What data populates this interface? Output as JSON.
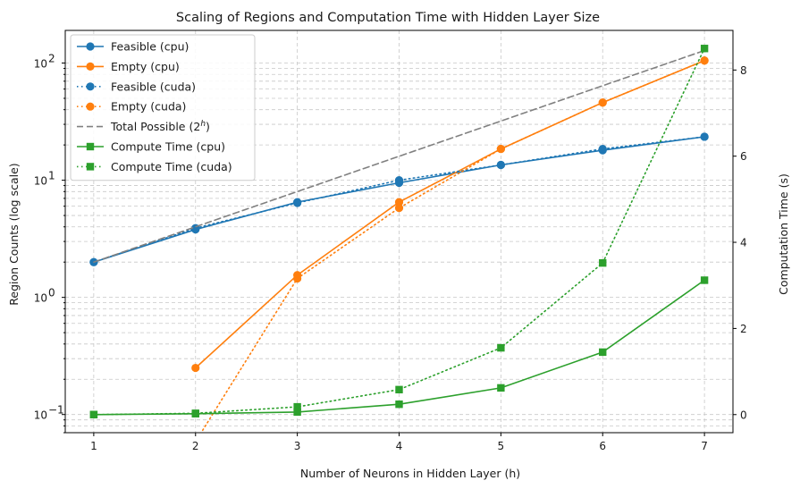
{
  "chart_data": {
    "type": "line",
    "title": "Scaling of Regions and Computation Time with Hidden Layer Size",
    "xlabel": "Number of Neurons in Hidden Layer (h)",
    "ylabel": "Region Counts (log scale)",
    "y2label": "Computation Time (s)",
    "x": [
      1,
      2,
      3,
      4,
      5,
      6,
      7
    ],
    "xlim": [
      0.72,
      7.28
    ],
    "ylim": [
      0.07,
      190
    ],
    "y2lim": [
      -0.42,
      8.92
    ],
    "yscale": "log",
    "grid": true,
    "legend_position": "upper-left",
    "x_ticks": [
      1,
      2,
      3,
      4,
      5,
      6,
      7
    ],
    "y_ticks": [
      {
        "value": 0.1,
        "base": "10",
        "exp": "−1"
      },
      {
        "value": 1,
        "base": "10",
        "exp": "0"
      },
      {
        "value": 10,
        "base": "10",
        "exp": "1"
      },
      {
        "value": 100,
        "base": "10",
        "exp": "2"
      }
    ],
    "y2_ticks": [
      0,
      2,
      4,
      6,
      8
    ],
    "series": [
      {
        "name": "Feasible (cpu)",
        "axis": "left",
        "color": "#1f77b4",
        "style": "solid",
        "marker": "circle",
        "values": [
          2,
          3.8,
          6.5,
          9.5,
          13.5,
          18,
          23.5
        ]
      },
      {
        "name": "Empty (cpu)",
        "axis": "left",
        "color": "#ff7f0e",
        "style": "solid",
        "marker": "circle",
        "values": [
          null,
          0.25,
          1.55,
          6.5,
          18.5,
          46,
          105
        ]
      },
      {
        "name": "Feasible (cuda)",
        "axis": "left",
        "color": "#1f77b4",
        "style": "dotted",
        "marker": "circle",
        "values": [
          2,
          3.9,
          6.4,
          10,
          13.5,
          18.5,
          23.5
        ]
      },
      {
        "name": "Empty (cuda)",
        "axis": "left",
        "color": "#ff7f0e",
        "style": "dotted",
        "marker": "circle",
        "values": [
          null,
          0.01,
          1.45,
          5.8,
          18.5,
          46,
          105
        ]
      },
      {
        "name": "Total Possible",
        "name_math": "(2",
        "name_sup": "h",
        "name_tail": ")",
        "axis": "left",
        "color": "#808080",
        "style": "dashed",
        "marker": "none",
        "values": [
          2,
          4,
          8,
          16,
          32,
          64,
          128
        ]
      },
      {
        "name": "Compute Time (cpu)",
        "axis": "right",
        "color": "#2ca02c",
        "style": "solid",
        "marker": "square",
        "values": [
          0.0,
          0.02,
          0.06,
          0.24,
          0.62,
          1.45,
          3.12
        ]
      },
      {
        "name": "Compute Time (cuda)",
        "axis": "right",
        "color": "#2ca02c",
        "style": "dotted",
        "marker": "square",
        "values": [
          0.0,
          0.03,
          0.18,
          0.58,
          1.55,
          3.52,
          8.5
        ]
      }
    ]
  }
}
